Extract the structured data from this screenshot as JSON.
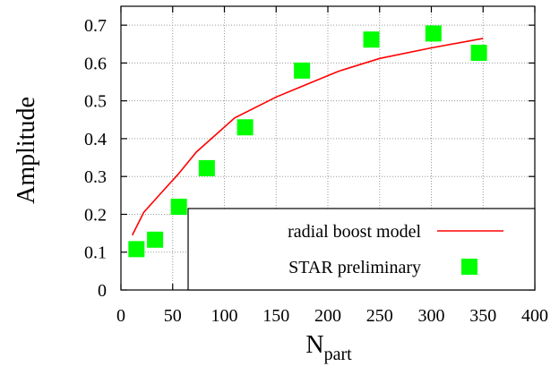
{
  "chart_data": {
    "type": "scatter",
    "xlabel": "N",
    "xlabel_sub": "part",
    "ylabel": "Amplitude",
    "xlim": [
      0,
      400
    ],
    "ylim": [
      0,
      0.75
    ],
    "x_ticks": [
      0,
      50,
      100,
      150,
      200,
      250,
      300,
      350,
      400
    ],
    "y_ticks": [
      0,
      0.1,
      0.2,
      0.3,
      0.4,
      0.5,
      0.6,
      0.7
    ],
    "y_tick_labels": [
      "0",
      "0.1",
      "0.2",
      "0.3",
      "0.4",
      "0.5",
      "0.6",
      "0.7"
    ],
    "grid": true,
    "legend_position": "bottom-right",
    "series": [
      {
        "name": "radial boost model",
        "type": "line",
        "color": "#ff0000",
        "x": [
          11,
          22,
          40,
          55,
          73,
          110,
          150,
          172,
          210,
          250,
          300,
          350
        ],
        "y": [
          0.145,
          0.205,
          0.26,
          0.305,
          0.365,
          0.455,
          0.51,
          0.535,
          0.578,
          0.612,
          0.64,
          0.665
        ]
      },
      {
        "name": "STAR preliminary",
        "type": "scatter",
        "marker": "square",
        "color": "#00ff00",
        "x": [
          15,
          33,
          56,
          83,
          120,
          175,
          242,
          302,
          346
        ],
        "y": [
          0.108,
          0.133,
          0.22,
          0.322,
          0.43,
          0.58,
          0.662,
          0.678,
          0.627
        ]
      }
    ]
  }
}
